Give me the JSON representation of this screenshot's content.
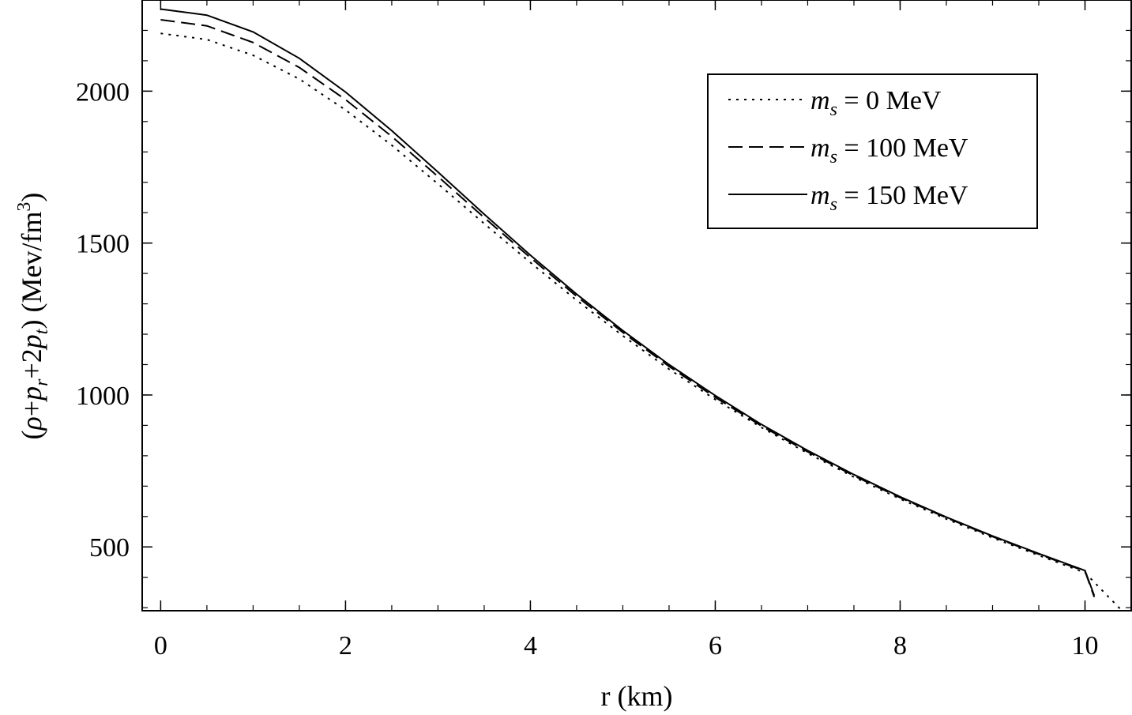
{
  "chart_data": {
    "type": "line",
    "xlabel": "r (km)",
    "ylabel": {
      "open": "(",
      "rho": "ρ",
      "plus1": "+",
      "p1": "p",
      "sub_r": "r",
      "plus2": "+2",
      "p2": "p",
      "sub_t": "t",
      "close": ")",
      "unit": " (Mev/fm",
      "unit_sup": "3",
      "unit_close": ")"
    },
    "xlim": [
      -0.2,
      10.5
    ],
    "ylim": [
      290,
      2300
    ],
    "x_ticks": [
      0,
      2,
      4,
      6,
      8,
      10
    ],
    "y_ticks": [
      500,
      1000,
      1500,
      2000
    ],
    "x_minor_step": 0.5,
    "y_minor_step": 100,
    "legend_position": "top-right",
    "series": [
      {
        "name": "m_s = 0 MeV",
        "label_prefix": "m",
        "label_sub": "s",
        "label_rest": " = 0 MeV",
        "style": "dotted",
        "x": [
          0,
          0.5,
          1,
          1.5,
          2,
          2.5,
          3,
          3.5,
          4,
          4.5,
          5,
          5.5,
          6,
          6.5,
          7,
          7.5,
          8,
          8.5,
          9,
          9.5,
          10,
          10.4
        ],
        "y": [
          2190,
          2170,
          2118,
          2040,
          1938,
          1822,
          1695,
          1564,
          1436,
          1312,
          1195,
          1085,
          985,
          893,
          808,
          730,
          658,
          592,
          530,
          472,
          415,
          290
        ]
      },
      {
        "name": "m_s = 100 MeV",
        "label_prefix": "m",
        "label_sub": "s",
        "label_rest": " = 100 MeV",
        "style": "dashed",
        "x": [
          0,
          0.5,
          1,
          1.5,
          2,
          2.5,
          3,
          3.5,
          4,
          4.5,
          5,
          5.5,
          6,
          6.5,
          7,
          7.5,
          8,
          8.5,
          9,
          9.5,
          10,
          10.1
        ],
        "y": [
          2235,
          2215,
          2160,
          2078,
          1972,
          1851,
          1719,
          1584,
          1452,
          1325,
          1206,
          1094,
          992,
          898,
          813,
          734,
          662,
          596,
          534,
          476,
          420,
          335
        ]
      },
      {
        "name": "m_s = 150 MeV",
        "label_prefix": "m",
        "label_sub": "s",
        "label_rest": " = 150 MeV",
        "style": "solid",
        "x": [
          0,
          0.5,
          1,
          1.5,
          2,
          2.5,
          3,
          3.5,
          4,
          4.5,
          5,
          5.5,
          6,
          6.5,
          7,
          7.5,
          8,
          8.5,
          9,
          9.5,
          10,
          10.1
        ],
        "y": [
          2270,
          2250,
          2195,
          2108,
          1997,
          1870,
          1734,
          1595,
          1460,
          1332,
          1212,
          1100,
          998,
          903,
          817,
          738,
          665,
          598,
          536,
          478,
          422,
          340
        ]
      }
    ]
  }
}
